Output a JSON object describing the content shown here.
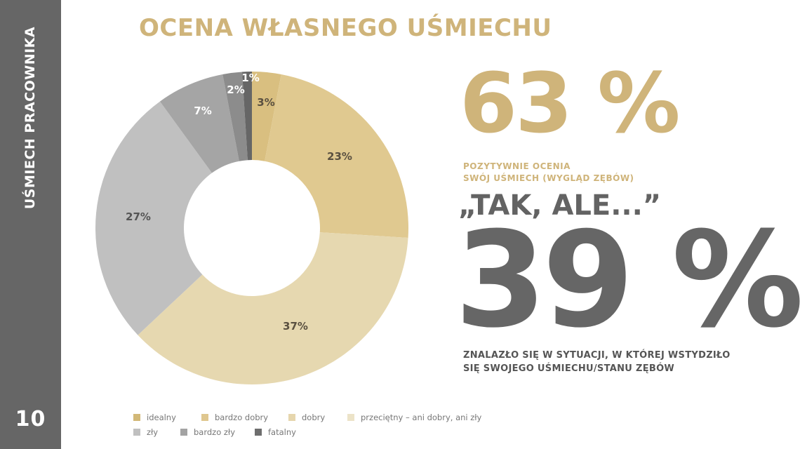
{
  "sidebar": {
    "section_title": "UŚMIECH PRACOWNIKA",
    "page_number": "10",
    "background": "#666666"
  },
  "title": "OCENA WŁASNEGO UŚMIECHU",
  "stats": {
    "positive": {
      "value": "63 %",
      "caption_line1": "POZYTYWNIE OCENIA",
      "caption_line2": "SWÓJ UŚMIECH (WYGLĄD ZĘBÓW)",
      "color": "#cfb47a"
    },
    "quote": "„TAK, ALE...”",
    "negative": {
      "value": "39 %",
      "caption_line1": "ZNALAZŁO SIĘ W SYTUACJI, W KTÓREJ WSTYDZIŁO",
      "caption_line2": "SIĘ SWOJEGO UŚMIECHU/STANU ZĘBÓW",
      "color": "#666666"
    }
  },
  "legend": [
    {
      "label": "idealny",
      "color": "#d2b877"
    },
    {
      "label": "bardzo dobry",
      "color": "#dfc78f"
    },
    {
      "label": "dobry",
      "color": "#e6d6ad"
    },
    {
      "label": "przeciętny – ani dobry, ani zły",
      "color": "#ece3c8"
    },
    {
      "label": "zły",
      "color": "#c0c0c0"
    },
    {
      "label": "bardzo zły",
      "color": "#a3a3a3"
    },
    {
      "label": "fatalny",
      "color": "#6e6e6e"
    }
  ],
  "chart_data": {
    "type": "pie",
    "subtype": "donut",
    "title": "OCENA WŁASNEGO UŚMIECHU",
    "start_angle": "12 o'clock, clockwise",
    "slices": [
      {
        "label": "3%",
        "value": 3,
        "color": "#d9bf80",
        "text_color": "#5a5040"
      },
      {
        "label": "23%",
        "value": 23,
        "color": "#e0c990",
        "text_color": "#5a5040"
      },
      {
        "label": "37%",
        "value": 37,
        "color": "#e6d8b0",
        "text_color": "#5a5040"
      },
      {
        "label": "27%",
        "value": 27,
        "color": "#c0c0c0",
        "text_color": "#555555"
      },
      {
        "label": "7%",
        "value": 7,
        "color": "#a5a5a5",
        "text_color": "#ffffff"
      },
      {
        "label": "2%",
        "value": 2,
        "color": "#8c8c8c",
        "text_color": "#ffffff"
      },
      {
        "label": "1%",
        "value": 1,
        "color": "#666666",
        "text_color": "#ffffff"
      }
    ],
    "legend_entries": [
      "idealny",
      "bardzo dobry",
      "dobry",
      "przeciętny – ani dobry, ani zły",
      "zły",
      "bardzo zły",
      "fatalny"
    ],
    "legend_position": "bottom"
  }
}
